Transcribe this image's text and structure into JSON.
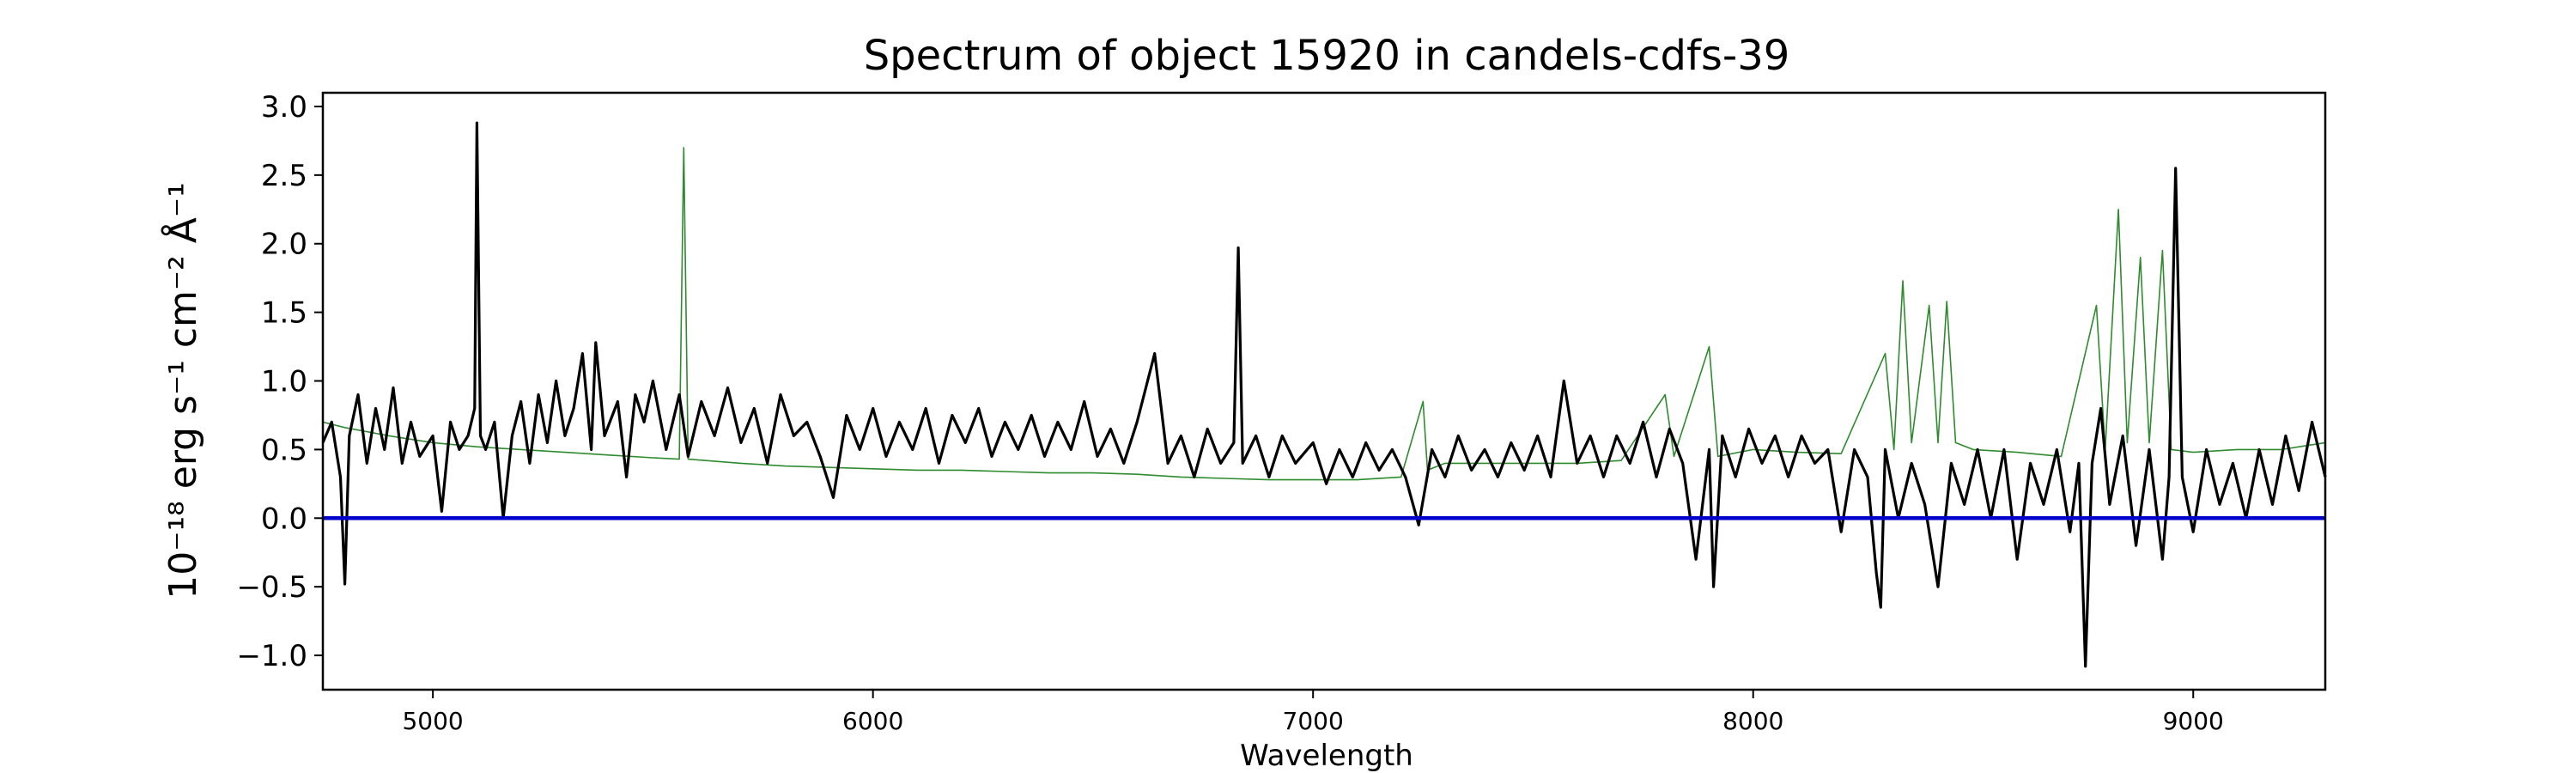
{
  "chart_data": {
    "type": "line",
    "title": "Spectrum of object 15920 in candels-cdfs-39",
    "xlabel": "Wavelength",
    "ylabel": "10⁻¹⁸ erg s⁻¹ cm⁻² Å⁻¹",
    "xlim": [
      4750,
      9300
    ],
    "ylim": [
      -1.25,
      3.1
    ],
    "x_ticks": [
      5000,
      6000,
      7000,
      8000,
      9000
    ],
    "x_tick_labels": [
      "5000",
      "6000",
      "7000",
      "8000",
      "9000"
    ],
    "y_ticks": [
      3.0,
      2.5,
      2.0,
      1.5,
      1.0,
      0.5,
      0.0,
      -0.5,
      -1.0
    ],
    "y_tick_labels": [
      "3.0",
      "2.5",
      "2.0",
      "1.5",
      "1.0",
      "0.5",
      "0.0",
      "−0.5",
      "−1.0"
    ],
    "grid": false,
    "series": [
      {
        "role": "flux",
        "color": "#000000",
        "points": [
          [
            4750,
            0.55
          ],
          [
            4770,
            0.7
          ],
          [
            4790,
            0.3
          ],
          [
            4800,
            -0.48
          ],
          [
            4810,
            0.6
          ],
          [
            4830,
            0.9
          ],
          [
            4850,
            0.4
          ],
          [
            4870,
            0.8
          ],
          [
            4890,
            0.5
          ],
          [
            4910,
            0.95
          ],
          [
            4930,
            0.4
          ],
          [
            4950,
            0.7
          ],
          [
            4970,
            0.45
          ],
          [
            5000,
            0.6
          ],
          [
            5020,
            0.05
          ],
          [
            5040,
            0.7
          ],
          [
            5060,
            0.5
          ],
          [
            5080,
            0.6
          ],
          [
            5095,
            0.8
          ],
          [
            5100,
            2.88
          ],
          [
            5108,
            0.6
          ],
          [
            5120,
            0.5
          ],
          [
            5140,
            0.7
          ],
          [
            5160,
            0.0
          ],
          [
            5180,
            0.6
          ],
          [
            5200,
            0.85
          ],
          [
            5220,
            0.4
          ],
          [
            5240,
            0.9
          ],
          [
            5260,
            0.55
          ],
          [
            5280,
            1.0
          ],
          [
            5300,
            0.6
          ],
          [
            5320,
            0.8
          ],
          [
            5340,
            1.2
          ],
          [
            5360,
            0.5
          ],
          [
            5370,
            1.28
          ],
          [
            5390,
            0.6
          ],
          [
            5420,
            0.85
          ],
          [
            5440,
            0.3
          ],
          [
            5460,
            0.9
          ],
          [
            5480,
            0.7
          ],
          [
            5500,
            1.0
          ],
          [
            5530,
            0.5
          ],
          [
            5560,
            0.9
          ],
          [
            5580,
            0.45
          ],
          [
            5610,
            0.85
          ],
          [
            5640,
            0.6
          ],
          [
            5670,
            0.95
          ],
          [
            5700,
            0.55
          ],
          [
            5730,
            0.8
          ],
          [
            5760,
            0.4
          ],
          [
            5790,
            0.9
          ],
          [
            5820,
            0.6
          ],
          [
            5850,
            0.7
          ],
          [
            5880,
            0.45
          ],
          [
            5910,
            0.15
          ],
          [
            5940,
            0.75
          ],
          [
            5970,
            0.5
          ],
          [
            6000,
            0.8
          ],
          [
            6030,
            0.45
          ],
          [
            6060,
            0.7
          ],
          [
            6090,
            0.5
          ],
          [
            6120,
            0.8
          ],
          [
            6150,
            0.4
          ],
          [
            6180,
            0.75
          ],
          [
            6210,
            0.55
          ],
          [
            6240,
            0.8
          ],
          [
            6270,
            0.45
          ],
          [
            6300,
            0.7
          ],
          [
            6330,
            0.5
          ],
          [
            6360,
            0.75
          ],
          [
            6390,
            0.45
          ],
          [
            6420,
            0.7
          ],
          [
            6450,
            0.5
          ],
          [
            6480,
            0.85
          ],
          [
            6510,
            0.45
          ],
          [
            6540,
            0.65
          ],
          [
            6570,
            0.4
          ],
          [
            6600,
            0.7
          ],
          [
            6640,
            1.2
          ],
          [
            6670,
            0.4
          ],
          [
            6700,
            0.6
          ],
          [
            6730,
            0.3
          ],
          [
            6760,
            0.65
          ],
          [
            6790,
            0.4
          ],
          [
            6820,
            0.55
          ],
          [
            6830,
            1.97
          ],
          [
            6840,
            0.4
          ],
          [
            6870,
            0.6
          ],
          [
            6900,
            0.3
          ],
          [
            6930,
            0.6
          ],
          [
            6960,
            0.4
          ],
          [
            7000,
            0.55
          ],
          [
            7030,
            0.25
          ],
          [
            7060,
            0.5
          ],
          [
            7090,
            0.3
          ],
          [
            7120,
            0.55
          ],
          [
            7150,
            0.35
          ],
          [
            7180,
            0.5
          ],
          [
            7210,
            0.3
          ],
          [
            7240,
            -0.05
          ],
          [
            7270,
            0.5
          ],
          [
            7300,
            0.3
          ],
          [
            7330,
            0.6
          ],
          [
            7360,
            0.35
          ],
          [
            7390,
            0.5
          ],
          [
            7420,
            0.3
          ],
          [
            7450,
            0.55
          ],
          [
            7480,
            0.35
          ],
          [
            7510,
            0.6
          ],
          [
            7540,
            0.3
          ],
          [
            7570,
            1.0
          ],
          [
            7600,
            0.4
          ],
          [
            7630,
            0.6
          ],
          [
            7660,
            0.3
          ],
          [
            7690,
            0.6
          ],
          [
            7720,
            0.4
          ],
          [
            7750,
            0.7
          ],
          [
            7780,
            0.3
          ],
          [
            7810,
            0.65
          ],
          [
            7840,
            0.4
          ],
          [
            7870,
            -0.3
          ],
          [
            7900,
            0.5
          ],
          [
            7910,
            -0.5
          ],
          [
            7930,
            0.6
          ],
          [
            7960,
            0.3
          ],
          [
            7990,
            0.65
          ],
          [
            8020,
            0.4
          ],
          [
            8050,
            0.6
          ],
          [
            8080,
            0.3
          ],
          [
            8110,
            0.6
          ],
          [
            8140,
            0.4
          ],
          [
            8170,
            0.5
          ],
          [
            8200,
            -0.1
          ],
          [
            8230,
            0.5
          ],
          [
            8260,
            0.3
          ],
          [
            8280,
            -0.4
          ],
          [
            8290,
            -0.65
          ],
          [
            8300,
            0.5
          ],
          [
            8330,
            0.0
          ],
          [
            8360,
            0.4
          ],
          [
            8390,
            0.1
          ],
          [
            8420,
            -0.5
          ],
          [
            8450,
            0.4
          ],
          [
            8480,
            0.1
          ],
          [
            8510,
            0.5
          ],
          [
            8540,
            0.0
          ],
          [
            8570,
            0.5
          ],
          [
            8600,
            -0.3
          ],
          [
            8630,
            0.4
          ],
          [
            8660,
            0.1
          ],
          [
            8690,
            0.5
          ],
          [
            8720,
            -0.1
          ],
          [
            8740,
            0.4
          ],
          [
            8755,
            -1.08
          ],
          [
            8770,
            0.4
          ],
          [
            8790,
            0.8
          ],
          [
            8810,
            0.1
          ],
          [
            8840,
            0.6
          ],
          [
            8870,
            -0.2
          ],
          [
            8900,
            0.5
          ],
          [
            8930,
            -0.3
          ],
          [
            8945,
            0.3
          ],
          [
            8960,
            2.55
          ],
          [
            8975,
            0.3
          ],
          [
            9000,
            -0.1
          ],
          [
            9030,
            0.5
          ],
          [
            9060,
            0.1
          ],
          [
            9090,
            0.4
          ],
          [
            9120,
            0.0
          ],
          [
            9150,
            0.5
          ],
          [
            9180,
            0.1
          ],
          [
            9210,
            0.6
          ],
          [
            9240,
            0.2
          ],
          [
            9270,
            0.7
          ],
          [
            9300,
            0.3
          ]
        ]
      },
      {
        "role": "error",
        "color": "#2e8b2e",
        "points": [
          [
            4750,
            0.7
          ],
          [
            4800,
            0.66
          ],
          [
            4900,
            0.6
          ],
          [
            5000,
            0.55
          ],
          [
            5100,
            0.52
          ],
          [
            5200,
            0.5
          ],
          [
            5300,
            0.48
          ],
          [
            5400,
            0.46
          ],
          [
            5500,
            0.44
          ],
          [
            5560,
            0.43
          ],
          [
            5570,
            2.7
          ],
          [
            5580,
            0.43
          ],
          [
            5700,
            0.4
          ],
          [
            5800,
            0.38
          ],
          [
            5900,
            0.37
          ],
          [
            6000,
            0.36
          ],
          [
            6100,
            0.35
          ],
          [
            6200,
            0.35
          ],
          [
            6300,
            0.34
          ],
          [
            6400,
            0.33
          ],
          [
            6500,
            0.33
          ],
          [
            6600,
            0.32
          ],
          [
            6700,
            0.3
          ],
          [
            6800,
            0.29
          ],
          [
            6900,
            0.28
          ],
          [
            7000,
            0.28
          ],
          [
            7100,
            0.28
          ],
          [
            7200,
            0.3
          ],
          [
            7250,
            0.85
          ],
          [
            7260,
            0.35
          ],
          [
            7300,
            0.4
          ],
          [
            7400,
            0.4
          ],
          [
            7500,
            0.4
          ],
          [
            7600,
            0.4
          ],
          [
            7700,
            0.42
          ],
          [
            7800,
            0.9
          ],
          [
            7820,
            0.45
          ],
          [
            7900,
            1.25
          ],
          [
            7920,
            0.45
          ],
          [
            8000,
            0.5
          ],
          [
            8100,
            0.48
          ],
          [
            8200,
            0.47
          ],
          [
            8300,
            1.2
          ],
          [
            8320,
            0.5
          ],
          [
            8340,
            1.73
          ],
          [
            8360,
            0.55
          ],
          [
            8400,
            1.55
          ],
          [
            8420,
            0.55
          ],
          [
            8440,
            1.58
          ],
          [
            8460,
            0.55
          ],
          [
            8500,
            0.5
          ],
          [
            8600,
            0.48
          ],
          [
            8700,
            0.45
          ],
          [
            8780,
            1.55
          ],
          [
            8800,
            0.5
          ],
          [
            8830,
            2.25
          ],
          [
            8850,
            0.55
          ],
          [
            8880,
            1.9
          ],
          [
            8900,
            0.55
          ],
          [
            8930,
            1.95
          ],
          [
            8950,
            0.5
          ],
          [
            9000,
            0.48
          ],
          [
            9100,
            0.5
          ],
          [
            9200,
            0.5
          ],
          [
            9300,
            0.55
          ]
        ]
      },
      {
        "role": "zero",
        "color": "#0000cc",
        "points": [
          [
            4750,
            0.0
          ],
          [
            9300,
            0.0
          ]
        ]
      }
    ]
  }
}
